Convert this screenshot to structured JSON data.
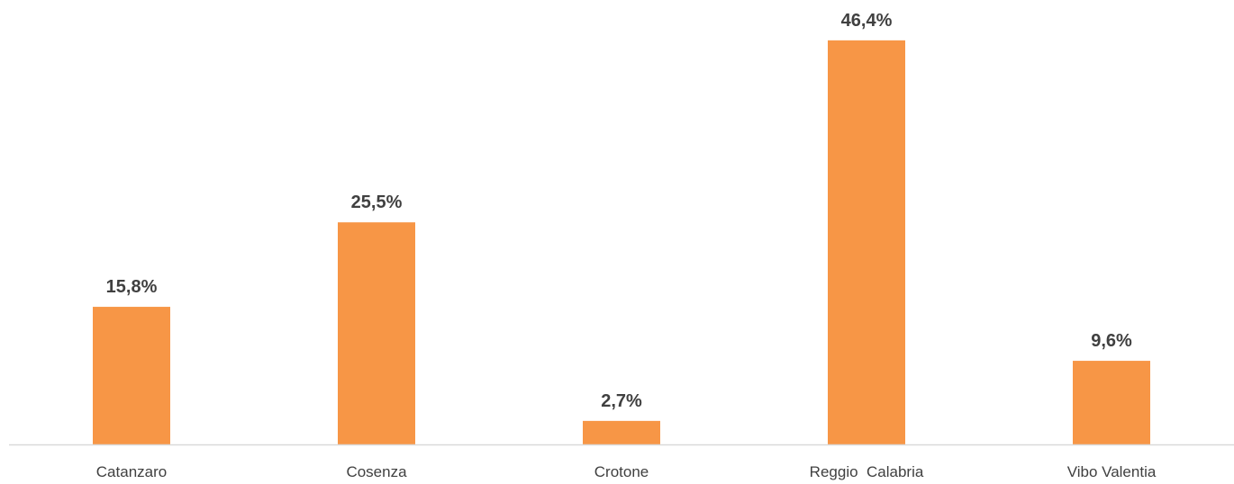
{
  "chart_data": {
    "type": "bar",
    "categories": [
      "Catanzaro",
      "Cosenza",
      "Crotone",
      "Reggio  Calabria",
      "Vibo Valentia"
    ],
    "values": [
      15.8,
      25.5,
      2.7,
      46.4,
      9.6
    ],
    "value_labels": [
      "15,8%",
      "25,5%",
      "2,7%",
      "46,4%",
      "9,6%"
    ],
    "title": "",
    "xlabel": "",
    "ylabel": "",
    "ylim": [
      0,
      50
    ],
    "grid": false,
    "legend": "none",
    "bar_color": "#F79646",
    "axis_color": "#D9D9D9",
    "text_color": "#404040"
  }
}
